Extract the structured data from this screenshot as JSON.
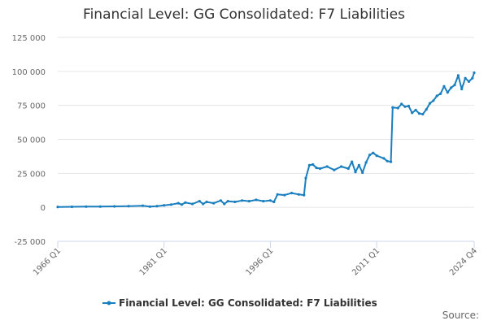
{
  "chart_data": {
    "type": "line",
    "title": "Financial Level: GG Consolidated: F7 Liabilities",
    "xlabel": "",
    "ylabel": "",
    "ylim": [
      -25000,
      125000
    ],
    "y_ticks": [
      -25000,
      0,
      25000,
      50000,
      75000,
      100000,
      125000
    ],
    "y_tick_labels": [
      "-25 000",
      "0",
      "25 000",
      "50 000",
      "75 000",
      "100 000",
      "125 000"
    ],
    "x_range": [
      "1966 Q1",
      "2024 Q4"
    ],
    "x_ticks": [
      "1966 Q1",
      "1981 Q1",
      "1996 Q1",
      "2011 Q1",
      "2024 Q4"
    ],
    "grid": "horizontal",
    "legend_position": "bottom",
    "series": [
      {
        "name": "Financial Level: GG Consolidated: F7 Liabilities",
        "color": "#1a7fbf",
        "points": [
          [
            "1966 Q1",
            300
          ],
          [
            "1968 Q1",
            400
          ],
          [
            "1970 Q1",
            500
          ],
          [
            "1972 Q1",
            600
          ],
          [
            "1974 Q1",
            700
          ],
          [
            "1976 Q1",
            900
          ],
          [
            "1978 Q1",
            1200
          ],
          [
            "1979 Q1",
            500
          ],
          [
            "1980 Q1",
            900
          ],
          [
            "1981 Q1",
            1500
          ],
          [
            "1982 Q1",
            2000
          ],
          [
            "1983 Q1",
            3000
          ],
          [
            "1983 Q3",
            2000
          ],
          [
            "1984 Q1",
            3500
          ],
          [
            "1985 Q1",
            2500
          ],
          [
            "1986 Q1",
            4500
          ],
          [
            "1986 Q3",
            2500
          ],
          [
            "1987 Q1",
            4000
          ],
          [
            "1988 Q1",
            3000
          ],
          [
            "1989 Q1",
            5000
          ],
          [
            "1989 Q3",
            2500
          ],
          [
            "1990 Q1",
            4500
          ],
          [
            "1991 Q1",
            4000
          ],
          [
            "1992 Q1",
            5000
          ],
          [
            "1993 Q1",
            4500
          ],
          [
            "1994 Q1",
            5500
          ],
          [
            "1995 Q1",
            4500
          ],
          [
            "1996 Q1",
            5000
          ],
          [
            "1996 Q3",
            4000
          ],
          [
            "1997 Q1",
            9500
          ],
          [
            "1998 Q1",
            9000
          ],
          [
            "1999 Q1",
            10500
          ],
          [
            "2000 Q1",
            9500
          ],
          [
            "2000 Q4",
            9000
          ],
          [
            "2001 Q1",
            21500
          ],
          [
            "2001 Q3",
            31000
          ],
          [
            "2002 Q1",
            31500
          ],
          [
            "2002 Q3",
            29000
          ],
          [
            "2003 Q1",
            28500
          ],
          [
            "2004 Q1",
            30000
          ],
          [
            "2005 Q1",
            27500
          ],
          [
            "2006 Q1",
            30000
          ],
          [
            "2007 Q1",
            28500
          ],
          [
            "2007 Q3",
            33500
          ],
          [
            "2008 Q1",
            26000
          ],
          [
            "2008 Q3",
            31000
          ],
          [
            "2009 Q1",
            25500
          ],
          [
            "2009 Q3",
            33000
          ],
          [
            "2010 Q1",
            38500
          ],
          [
            "2010 Q3",
            40000
          ],
          [
            "2011 Q1",
            38000
          ],
          [
            "2012 Q1",
            36000
          ],
          [
            "2012 Q3",
            34000
          ],
          [
            "2013 Q1",
            33500
          ],
          [
            "2013 Q2",
            73500
          ],
          [
            "2014 Q1",
            73000
          ],
          [
            "2014 Q3",
            76000
          ],
          [
            "2015 Q1",
            74000
          ],
          [
            "2015 Q3",
            74500
          ],
          [
            "2016 Q1",
            69500
          ],
          [
            "2016 Q3",
            71500
          ],
          [
            "2017 Q1",
            69000
          ],
          [
            "2017 Q3",
            68500
          ],
          [
            "2018 Q1",
            72000
          ],
          [
            "2018 Q3",
            76500
          ],
          [
            "2019 Q1",
            78500
          ],
          [
            "2019 Q3",
            82000
          ],
          [
            "2020 Q1",
            83500
          ],
          [
            "2020 Q3",
            89000
          ],
          [
            "2021 Q1",
            84500
          ],
          [
            "2021 Q3",
            88000
          ],
          [
            "2022 Q1",
            90000
          ],
          [
            "2022 Q3",
            97000
          ],
          [
            "2023 Q1",
            87000
          ],
          [
            "2023 Q3",
            95000
          ],
          [
            "2024 Q1",
            92500
          ],
          [
            "2024 Q3",
            95000
          ],
          [
            "2024 Q4",
            99000
          ]
        ]
      }
    ]
  },
  "source_label": "Source:"
}
